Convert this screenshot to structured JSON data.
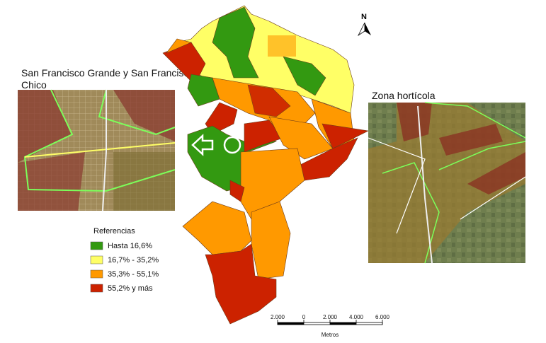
{
  "insets": [
    {
      "title": "San Francisco Grande y San Francisco Chico"
    },
    {
      "title": "Zona hortícola"
    }
  ],
  "legend": {
    "title": "Referencias",
    "items": [
      {
        "label": "Hasta 16,6%",
        "color": "#339911"
      },
      {
        "label": "16,7% - 35,2%",
        "color": "#ffff66"
      },
      {
        "label": "35,3% - 55,1%",
        "color": "#ff9900"
      },
      {
        "label": "55,2% y más",
        "color": "#cc2200"
      }
    ]
  },
  "north_arrow": {
    "label": "N"
  },
  "scale_bar": {
    "labels": [
      "2.000",
      "0",
      "2.000",
      "4.000",
      "6.000"
    ],
    "unit": "Metros"
  }
}
